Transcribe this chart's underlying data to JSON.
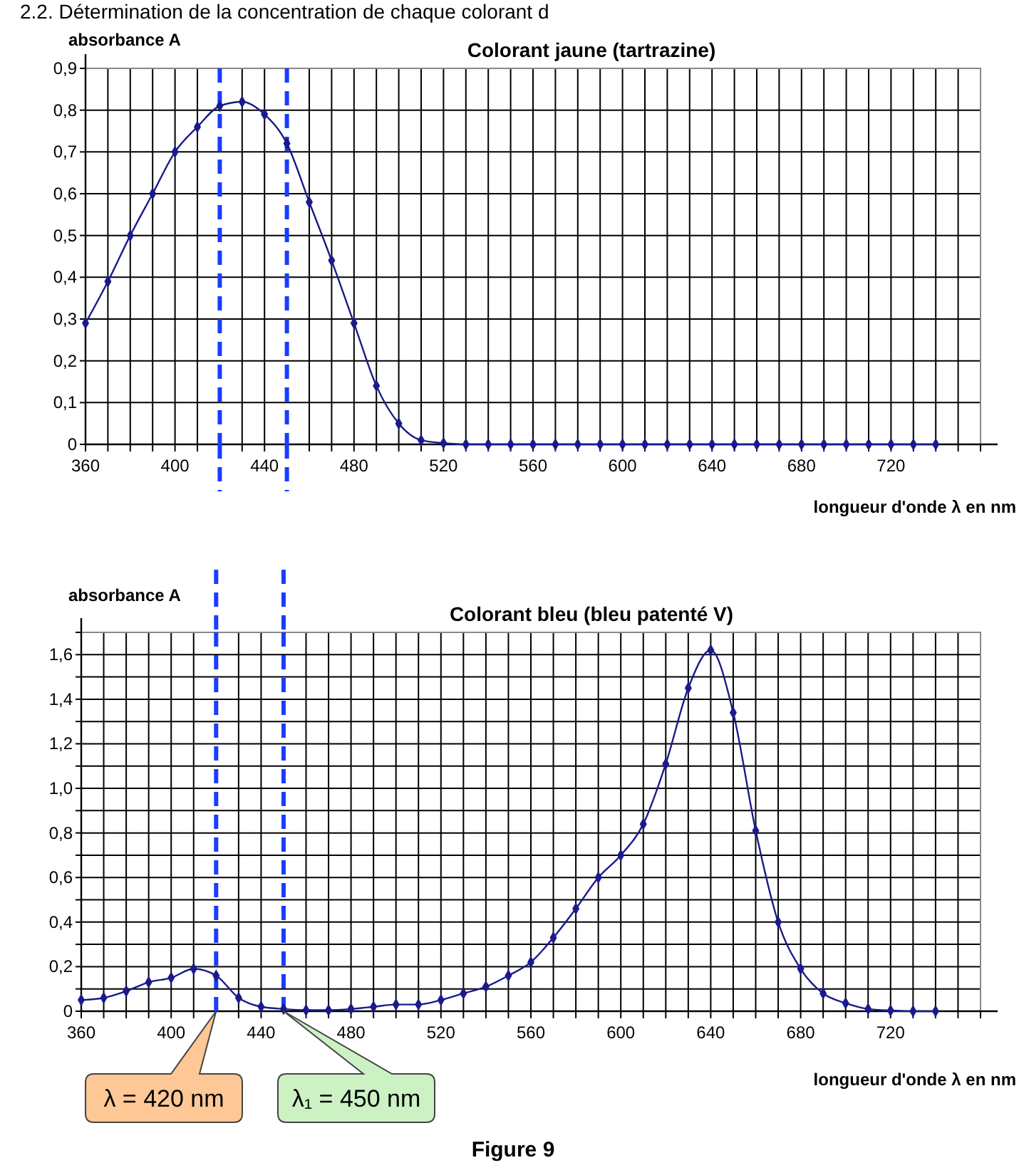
{
  "chart_data": [
    {
      "type": "line",
      "title": "Colorant jaune (tartrazine)",
      "xlabel": "longueur d'onde λ en nm",
      "ylabel": "absorbance A",
      "annotations": [
        "2.2. Détermination de la concentration de chaque colorant d"
      ],
      "x": [
        360,
        370,
        380,
        390,
        400,
        410,
        420,
        430,
        440,
        450,
        460,
        470,
        480,
        490,
        500,
        510,
        520,
        530,
        540,
        550,
        560,
        570,
        580,
        590,
        600,
        610,
        620,
        630,
        640,
        650,
        660,
        670,
        680,
        690,
        700,
        710,
        720,
        730,
        740
      ],
      "series": [
        {
          "color": "#1a1a8c",
          "values": [
            0.29,
            0.39,
            0.5,
            0.6,
            0.7,
            0.76,
            0.81,
            0.82,
            0.79,
            0.72,
            0.58,
            0.44,
            0.29,
            0.14,
            0.05,
            0.01,
            0.003,
            0,
            0,
            0,
            0,
            0,
            0,
            0,
            0,
            0,
            0,
            0,
            0,
            0,
            0,
            0,
            0,
            0,
            0,
            0,
            0,
            0,
            0
          ]
        }
      ],
      "xlim": [
        360,
        760
      ],
      "ylim": [
        0,
        0.9
      ],
      "xticks": [
        360,
        {
          "value": 370,
          "label": null
        },
        {
          "value": 380,
          "label": null
        },
        {
          "value": 390,
          "label": null
        },
        400,
        {
          "value": 410,
          "label": null
        },
        {
          "value": 430,
          "label": null
        },
        440,
        {
          "value": 460,
          "label": null
        },
        {
          "value": 470,
          "label": null
        },
        480,
        {
          "value": 490,
          "label": null
        },
        {
          "value": 500,
          "label": null
        },
        {
          "value": 510,
          "label": null
        },
        520,
        {
          "value": 530,
          "label": null
        },
        {
          "value": 540,
          "label": null
        },
        {
          "value": 550,
          "label": null
        },
        560,
        {
          "value": 570,
          "label": null
        },
        {
          "value": 580,
          "label": null
        },
        {
          "value": 590,
          "label": null
        },
        600,
        {
          "value": 610,
          "label": null
        },
        {
          "value": 620,
          "label": null
        },
        {
          "value": 630,
          "label": null
        },
        640,
        {
          "value": 650,
          "label": null
        },
        {
          "value": 660,
          "label": null
        },
        {
          "value": 670,
          "label": null
        },
        680,
        {
          "value": 690,
          "label": null
        },
        {
          "value": 700,
          "label": null
        },
        {
          "value": 710,
          "label": null
        },
        720,
        {
          "value": 730,
          "label": null
        },
        {
          "value": 740,
          "label": null
        },
        {
          "value": 750,
          "label": null
        },
        {
          "value": 760,
          "label": null
        }
      ],
      "yticks": [
        0,
        {
          "value": 0.1,
          "label": "0,1"
        },
        {
          "value": 0.2,
          "label": "0,2"
        },
        {
          "value": 0.3,
          "label": "0,3"
        },
        {
          "value": 0.4,
          "label": "0,4"
        },
        {
          "value": 0.5,
          "label": "0,5"
        },
        {
          "value": 0.6,
          "label": "0,6"
        },
        {
          "value": 0.7,
          "label": "0,7"
        },
        {
          "value": 0.8,
          "label": "0,8"
        },
        {
          "value": 0.9,
          "label": "0,9"
        }
      ],
      "grid": true,
      "marker": "diamond",
      "line_style": "solid",
      "ref_lines": [
        {
          "axis": "x",
          "value": 420,
          "color": "#1a3cff",
          "line_style": "dashed"
        },
        {
          "axis": "x",
          "value": 450,
          "color": "#1a3cff",
          "line_style": "dashed"
        }
      ]
    },
    {
      "type": "line",
      "title": "Colorant bleu (bleu patenté V)",
      "xlabel": "longueur d'onde λ en nm",
      "ylabel": "absorbance A",
      "annotations": [
        "λ = 420 nm",
        "λ₁ = 450 nm",
        "Figure 9"
      ],
      "x": [
        360,
        370,
        380,
        390,
        400,
        410,
        420,
        430,
        440,
        450,
        460,
        470,
        480,
        490,
        500,
        510,
        520,
        530,
        540,
        550,
        560,
        570,
        580,
        590,
        600,
        610,
        620,
        630,
        640,
        650,
        660,
        670,
        680,
        690,
        700,
        710,
        720,
        730,
        740
      ],
      "series": [
        {
          "color": "#1a1a8c",
          "values": [
            0.05,
            0.06,
            0.09,
            0.13,
            0.15,
            0.19,
            0.16,
            0.06,
            0.02,
            0.01,
            0.005,
            0.005,
            0.01,
            0.02,
            0.03,
            0.03,
            0.05,
            0.08,
            0.11,
            0.16,
            0.22,
            0.33,
            0.46,
            0.6,
            0.7,
            0.84,
            1.11,
            1.45,
            1.62,
            1.34,
            0.81,
            0.4,
            0.19,
            0.08,
            0.036,
            0.01,
            0.003,
            0,
            0
          ]
        }
      ],
      "xlim": [
        360,
        760
      ],
      "ylim": [
        0,
        1.7
      ],
      "xticks": [
        360,
        {
          "value": 370,
          "label": null
        },
        {
          "value": 380,
          "label": null
        },
        {
          "value": 390,
          "label": null
        },
        400,
        {
          "value": 410,
          "label": null
        },
        {
          "value": 430,
          "label": null
        },
        440,
        {
          "value": 460,
          "label": null
        },
        {
          "value": 470,
          "label": null
        },
        480,
        {
          "value": 490,
          "label": null
        },
        {
          "value": 500,
          "label": null
        },
        {
          "value": 510,
          "label": null
        },
        520,
        {
          "value": 530,
          "label": null
        },
        {
          "value": 540,
          "label": null
        },
        {
          "value": 550,
          "label": null
        },
        560,
        {
          "value": 570,
          "label": null
        },
        {
          "value": 580,
          "label": null
        },
        {
          "value": 590,
          "label": null
        },
        600,
        {
          "value": 610,
          "label": null
        },
        {
          "value": 620,
          "label": null
        },
        {
          "value": 630,
          "label": null
        },
        640,
        {
          "value": 650,
          "label": null
        },
        {
          "value": 660,
          "label": null
        },
        {
          "value": 670,
          "label": null
        },
        680,
        {
          "value": 690,
          "label": null
        },
        {
          "value": 700,
          "label": null
        },
        {
          "value": 710,
          "label": null
        },
        720,
        {
          "value": 730,
          "label": null
        },
        {
          "value": 740,
          "label": null
        },
        {
          "value": 750,
          "label": null
        },
        {
          "value": 760,
          "label": null
        }
      ],
      "yticks": [
        0,
        {
          "value": 0.1,
          "label": null
        },
        {
          "value": 0.2,
          "label": "0,2"
        },
        {
          "value": 0.3,
          "label": null
        },
        {
          "value": 0.4,
          "label": "0,4"
        },
        {
          "value": 0.5,
          "label": null
        },
        {
          "value": 0.6,
          "label": "0,6"
        },
        {
          "value": 0.7,
          "label": null
        },
        {
          "value": 0.8,
          "label": "0,8"
        },
        {
          "value": 0.9,
          "label": null
        },
        {
          "value": 1.0,
          "label": "1,0"
        },
        {
          "value": 1.1,
          "label": null
        },
        {
          "value": 1.2,
          "label": "1,2"
        },
        {
          "value": 1.3,
          "label": null
        },
        {
          "value": 1.4,
          "label": "1,4"
        },
        {
          "value": 1.5,
          "label": null
        },
        {
          "value": 1.6,
          "label": "1,6"
        },
        {
          "value": 1.7,
          "label": null
        }
      ],
      "grid": true,
      "marker": "diamond",
      "line_style": "solid",
      "ref_lines": [
        {
          "axis": "x",
          "value": 420,
          "color": "#1a3cff",
          "line_style": "dashed"
        },
        {
          "axis": "x",
          "value": 450,
          "color": "#1a3cff",
          "line_style": "dashed"
        }
      ]
    }
  ]
}
